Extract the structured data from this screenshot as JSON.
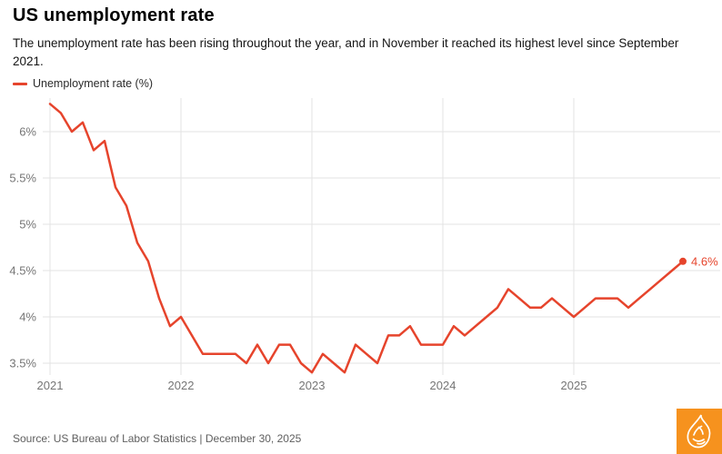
{
  "header": {
    "title": "US unemployment rate",
    "subtitle": "The unemployment rate has been rising throughout the year, and in November it reached its highest level since September 2021."
  },
  "legend": {
    "label": "Unemployment rate (%)"
  },
  "chart_data": {
    "type": "line",
    "title": "US unemployment rate",
    "series_name": "Unemployment rate (%)",
    "unit": "%",
    "start_month": "2021-01",
    "end_month": "2025-11",
    "values": [
      6.3,
      6.2,
      6.0,
      6.1,
      5.8,
      5.9,
      5.4,
      5.2,
      4.8,
      4.6,
      4.2,
      3.9,
      4.0,
      3.8,
      3.6,
      3.6,
      3.6,
      3.6,
      3.5,
      3.7,
      3.5,
      3.7,
      3.7,
      3.5,
      3.4,
      3.6,
      3.5,
      3.4,
      3.7,
      3.6,
      3.5,
      3.8,
      3.8,
      3.9,
      3.7,
      3.7,
      3.7,
      3.9,
      3.8,
      3.9,
      4.0,
      4.1,
      4.3,
      4.2,
      4.1,
      4.1,
      4.2,
      4.1,
      4.0,
      4.1,
      4.2,
      4.2,
      4.2,
      4.1,
      4.2,
      4.3,
      4.4,
      4.5,
      4.6
    ],
    "x_tick_labels": [
      "2021",
      "2022",
      "2023",
      "2024",
      "2025"
    ],
    "x_tick_month_indices": [
      0,
      12,
      24,
      36,
      48
    ],
    "y_ticks": [
      6,
      5.5,
      5,
      4.5,
      4,
      3.5
    ],
    "y_tick_labels": [
      "6%",
      "5.5%",
      "5%",
      "4.5%",
      "4%",
      "3.5%"
    ],
    "ylim": [
      3.3,
      6.45
    ],
    "grid": true,
    "legend_position": "top-left",
    "end_label": "4.6%",
    "line_color": "#E6442C"
  },
  "footer": {
    "source": "Source: US Bureau of Labor Statistics | December 30, 2025"
  },
  "colors": {
    "accent": "#E6442C",
    "gridline": "#E3E3E3",
    "tick_text": "#757575",
    "logo_orange": "#F6921E"
  },
  "icons": {
    "logo": "al-jazeera-flame"
  }
}
